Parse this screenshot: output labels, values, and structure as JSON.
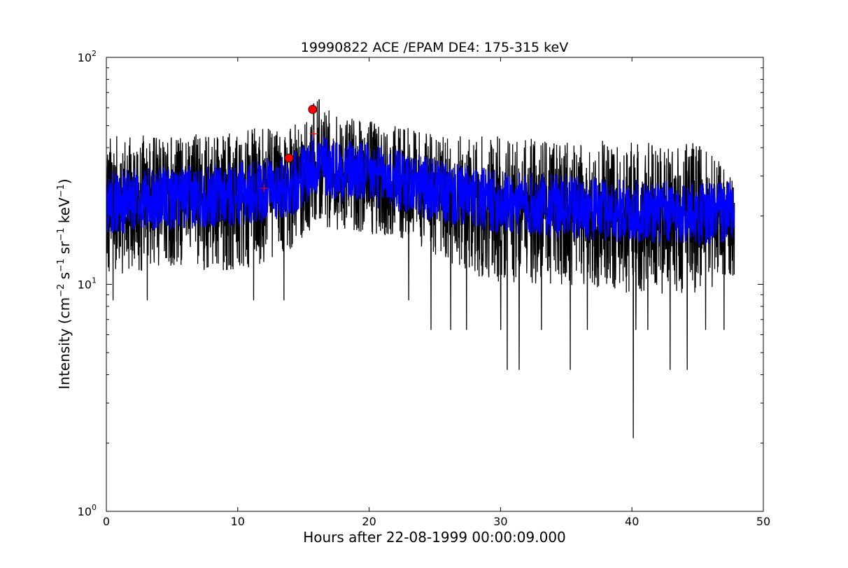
{
  "chart_data": {
    "type": "line",
    "title": "19990822 ACE /EPAM DE4: 175-315 keV",
    "xlabel": "Hours after 22-08-1999 00:00:09.000",
    "ylabel": {
      "prefix": "Intensity (cm",
      "exp1": "−2",
      "mid1": "s",
      "exp2": "−1",
      "mid2": "sr",
      "exp3": "−1",
      "mid3": "keV",
      "exp4": "−1",
      "suffix": ")"
    },
    "xlim": [
      0,
      50
    ],
    "ylim": [
      1,
      100
    ],
    "yscale": "log",
    "x_ticks": [
      {
        "value": 0,
        "label": "0"
      },
      {
        "value": 10,
        "label": "10"
      },
      {
        "value": 20,
        "label": "20"
      },
      {
        "value": 30,
        "label": "30"
      },
      {
        "value": 40,
        "label": "40"
      },
      {
        "value": 50,
        "label": "50"
      }
    ],
    "y_ticks": [
      {
        "value": 1,
        "base": "10",
        "exp": "0"
      },
      {
        "value": 10,
        "base": "10",
        "exp": "1"
      },
      {
        "value": 100,
        "base": "10",
        "exp": "2"
      }
    ],
    "series": [
      {
        "kind": "raw-line",
        "color": "#000000",
        "x_range": [
          0,
          47.8
        ],
        "envelope": [
          {
            "x": 0,
            "low": 10.5,
            "high": 45
          },
          {
            "x": 5,
            "low": 12,
            "high": 46
          },
          {
            "x": 10,
            "low": 11,
            "high": 48
          },
          {
            "x": 14,
            "low": 14,
            "high": 50
          },
          {
            "x": 16,
            "low": 18,
            "high": 65
          },
          {
            "x": 18,
            "low": 17,
            "high": 55
          },
          {
            "x": 22,
            "low": 16,
            "high": 50
          },
          {
            "x": 26,
            "low": 12,
            "high": 45
          },
          {
            "x": 30,
            "low": 10,
            "high": 45
          },
          {
            "x": 35,
            "low": 10,
            "high": 43
          },
          {
            "x": 40,
            "low": 9,
            "high": 43
          },
          {
            "x": 45,
            "low": 9,
            "high": 42
          },
          {
            "x": 47.8,
            "low": 10.5,
            "high": 30
          }
        ],
        "deep_dips": [
          {
            "x": 24.7,
            "y": 6.3
          },
          {
            "x": 26.2,
            "y": 6.3
          },
          {
            "x": 27.4,
            "y": 6.3
          },
          {
            "x": 30.0,
            "y": 6.3
          },
          {
            "x": 30.5,
            "y": 4.2
          },
          {
            "x": 31.4,
            "y": 4.2
          },
          {
            "x": 33.1,
            "y": 6.3
          },
          {
            "x": 35.3,
            "y": 4.2
          },
          {
            "x": 36.6,
            "y": 6.3
          },
          {
            "x": 40.1,
            "y": 2.1
          },
          {
            "x": 40.3,
            "y": 6.3
          },
          {
            "x": 41.2,
            "y": 6.3
          },
          {
            "x": 42.9,
            "y": 4.2
          },
          {
            "x": 44.2,
            "y": 4.2
          },
          {
            "x": 45.6,
            "y": 6.3
          },
          {
            "x": 47.0,
            "y": 6.3
          },
          {
            "x": 13.5,
            "y": 8.5
          },
          {
            "x": 11.2,
            "y": 8.5
          },
          {
            "x": 3.1,
            "y": 8.5
          },
          {
            "x": 0.5,
            "y": 8.5
          },
          {
            "x": 23.0,
            "y": 8.5
          }
        ],
        "peak": {
          "x": 16.2,
          "y": 65
        }
      },
      {
        "kind": "smoothed-line",
        "color": "#0000ff",
        "x_range": [
          0,
          47.8
        ],
        "trend": [
          {
            "x": 0,
            "y": 23
          },
          {
            "x": 5,
            "y": 24
          },
          {
            "x": 10,
            "y": 25
          },
          {
            "x": 14,
            "y": 27
          },
          {
            "x": 16,
            "y": 34
          },
          {
            "x": 18,
            "y": 32
          },
          {
            "x": 22,
            "y": 29
          },
          {
            "x": 26,
            "y": 25
          },
          {
            "x": 30,
            "y": 23
          },
          {
            "x": 35,
            "y": 22
          },
          {
            "x": 40,
            "y": 21
          },
          {
            "x": 45,
            "y": 20.5
          },
          {
            "x": 47.8,
            "y": 21
          }
        ],
        "spread_low": 0.72,
        "spread_high": 1.38
      }
    ],
    "markers": [
      {
        "shape": "circle",
        "x": 15.7,
        "y": 59,
        "color": "#ff0000"
      },
      {
        "shape": "circle",
        "x": 13.9,
        "y": 36,
        "color": "#ff0000"
      },
      {
        "shape": "plus",
        "x": 12.0,
        "y": 26.5,
        "color": "#ff0000"
      },
      {
        "shape": "plus",
        "x": 15.8,
        "y": 46,
        "color": "#ff0000"
      }
    ],
    "grid": false,
    "legend": "none"
  }
}
